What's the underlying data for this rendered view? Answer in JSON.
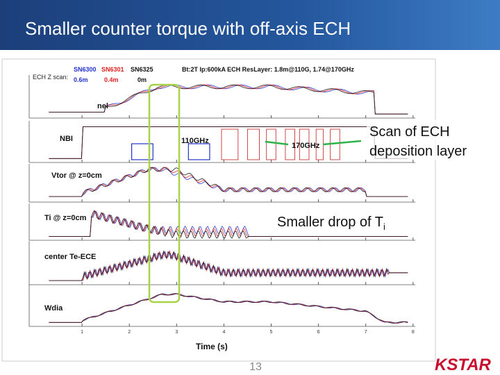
{
  "header": {
    "title": "Smaller counter torque with off-axis ECH"
  },
  "plot": {
    "scan_label": "ECH Z scan:",
    "shots": [
      {
        "name": "SN6300",
        "position": "0.6m"
      },
      {
        "name": "SN6301",
        "position": "0.4m"
      },
      {
        "name": "SN6325",
        "position": "0m"
      }
    ],
    "conditions": "Bt:2T  Ip:600kA  ECH ResLayer: 1.8m@110G, 1.74@170GHz",
    "panel_labels": [
      "nel",
      "NBI",
      "Vtor @ z=0cm",
      "Ti @ z=0cm",
      "center Te-ECE",
      "Wdia"
    ],
    "ech_labels": [
      "110GHz",
      "170GHz"
    ],
    "x_ticks": [
      "1",
      "2",
      "3",
      "4",
      "5",
      "6",
      "7",
      "8"
    ],
    "x_label": "Time (s)"
  },
  "annotations": {
    "ech_scan": [
      "Scan of ECH",
      "deposition layer"
    ],
    "ti_drop": {
      "text": "Smaller drop of T",
      "subscript": "i"
    }
  },
  "footer": {
    "page_number": "13",
    "logo": "KSTAR"
  }
}
